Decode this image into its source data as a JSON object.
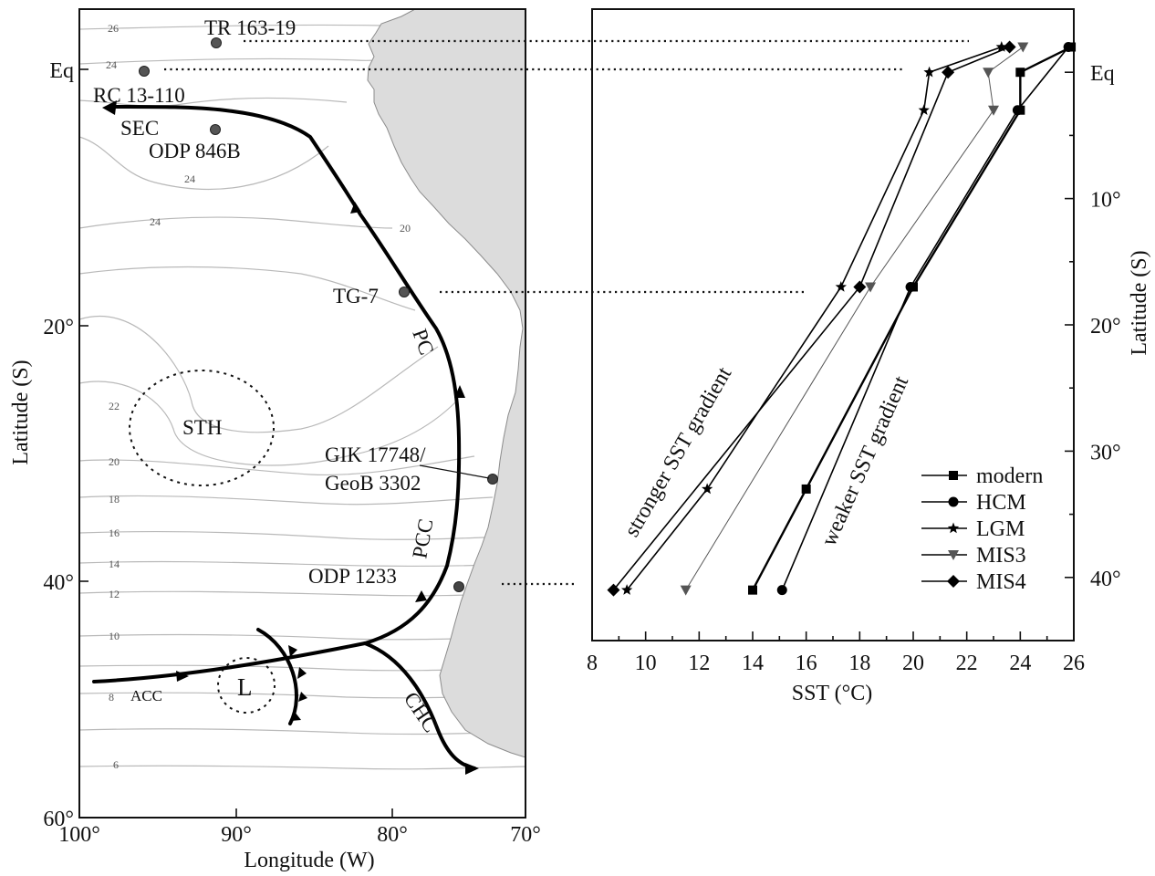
{
  "map": {
    "xlabel": "Longitude (W)",
    "ylabel": "Latitude (S)",
    "x_ticks": [
      "100°",
      "90°",
      "80°",
      "70°"
    ],
    "y_ticks": [
      "Eq",
      "20°",
      "40°",
      "60°"
    ],
    "contour_labels": [
      "26",
      "24",
      "24",
      "24",
      "20",
      "22",
      "20",
      "18",
      "16",
      "14",
      "12",
      "10",
      "8",
      "6"
    ],
    "sites": [
      "TR 163-19",
      "RC 13-110",
      "ODP 846B",
      "TG-7",
      "GIK 17748/",
      "GeoB 3302",
      "ODP 1233"
    ],
    "currents": [
      "SEC",
      "PC",
      "PCC",
      "ACC",
      "CHC"
    ],
    "features": [
      "STH",
      "L"
    ],
    "colors": {
      "land": "#dcdcdc",
      "contour": "#b9b9b9",
      "site_marker": "#555555"
    }
  },
  "chart_data": {
    "type": "line",
    "xlabel": "SST (°C)",
    "ylabel": "Latitude (S)",
    "xlim": [
      8,
      26
    ],
    "ylim": [
      -5,
      45
    ],
    "x_ticks": [
      "8",
      "10",
      "12",
      "14",
      "16",
      "18",
      "20",
      "22",
      "24",
      "26"
    ],
    "y_ticks": [
      "Eq",
      "10°",
      "20°",
      "30°",
      "40°"
    ],
    "annotations": [
      "stronger SST gradient",
      "weaker SST gradient"
    ],
    "legend_position": "bottom-right",
    "series": [
      {
        "name": "modern",
        "marker": "square",
        "color": "#000000",
        "points": [
          [
            25.9,
            -2
          ],
          [
            24.0,
            0
          ],
          [
            24.0,
            3
          ],
          [
            20.0,
            17
          ],
          [
            16.0,
            33
          ],
          [
            14.0,
            41
          ]
        ]
      },
      {
        "name": "HCM",
        "marker": "circle",
        "color": "#000000",
        "points": [
          [
            25.8,
            -2
          ],
          [
            23.9,
            3
          ],
          [
            19.9,
            17
          ],
          [
            15.1,
            41
          ]
        ]
      },
      {
        "name": "LGM",
        "marker": "star",
        "color": "#000000",
        "points": [
          [
            23.3,
            -2
          ],
          [
            20.6,
            0
          ],
          [
            20.4,
            3
          ],
          [
            17.3,
            17
          ],
          [
            12.3,
            33
          ],
          [
            9.3,
            41
          ]
        ]
      },
      {
        "name": "MIS3",
        "marker": "triangle-down",
        "color": "#555555",
        "points": [
          [
            24.1,
            -2
          ],
          [
            22.8,
            0
          ],
          [
            23.0,
            3
          ],
          [
            18.4,
            17
          ],
          [
            11.5,
            41
          ]
        ]
      },
      {
        "name": "MIS4",
        "marker": "diamond",
        "color": "#000000",
        "points": [
          [
            23.6,
            -2
          ],
          [
            21.3,
            0
          ],
          [
            18.0,
            17
          ],
          [
            8.8,
            41
          ]
        ]
      }
    ]
  }
}
